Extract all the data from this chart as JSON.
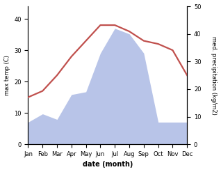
{
  "months": [
    "Jan",
    "Feb",
    "Mar",
    "Apr",
    "May",
    "Jun",
    "Jul",
    "Aug",
    "Sep",
    "Oct",
    "Nov",
    "Dec"
  ],
  "month_x": [
    1,
    2,
    3,
    4,
    5,
    6,
    7,
    8,
    9,
    10,
    11,
    12
  ],
  "temperature": [
    15,
    17,
    22,
    28,
    33,
    38,
    38,
    36,
    33,
    32,
    30,
    22
  ],
  "precipitation": [
    8,
    11,
    9,
    18,
    19,
    33,
    42,
    40,
    33,
    8,
    8,
    8
  ],
  "temp_color": "#c0504d",
  "precip_fill_color": "#b8c4e8",
  "ylabel_left": "max temp (C)",
  "ylabel_right": "med. precipitation (kg/m2)",
  "xlabel": "date (month)",
  "ylim_left": [
    0,
    44
  ],
  "ylim_right": [
    0,
    50
  ],
  "yticks_left": [
    0,
    10,
    20,
    30,
    40
  ],
  "yticks_right": [
    0,
    10,
    20,
    30,
    40,
    50
  ],
  "bg_color": "#ffffff",
  "fig_width": 3.18,
  "fig_height": 2.47,
  "temp_linewidth": 1.6,
  "tick_fontsize": 6,
  "label_fontsize": 6,
  "xlabel_fontsize": 7
}
